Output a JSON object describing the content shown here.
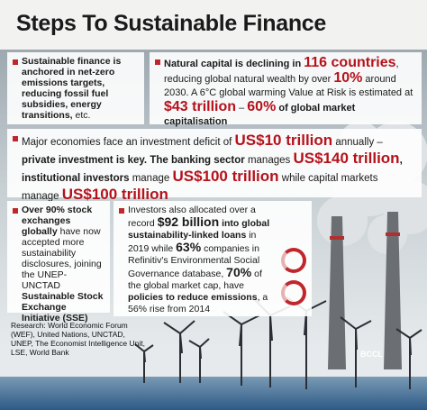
{
  "title": "Steps To Sustainable Finance",
  "boxes": [
    {
      "segments": [
        {
          "text": "Sustainable finance is anchored in ",
          "style": "bold"
        },
        {
          "text": "net-zero emissions targets, reducing fossil fuel subsidies, energy transitions,",
          "style": "bold"
        },
        {
          "text": " etc.",
          "style": "plain"
        }
      ]
    },
    {
      "segments": [
        {
          "text": "Natural capital is declining in ",
          "style": "bold"
        },
        {
          "text": "116 countries",
          "style": "red"
        },
        {
          "text": ", reducing global natural wealth by over ",
          "style": "plain"
        },
        {
          "text": "10%",
          "style": "red"
        },
        {
          "text": " around 2030. A 6°C global warming Value at Risk is estimated at ",
          "style": "plain"
        },
        {
          "text": "$43 trillion",
          "style": "red"
        },
        {
          "text": " – ",
          "style": "plain"
        },
        {
          "text": "60%",
          "style": "red"
        },
        {
          "text": " of global market capitalisation",
          "style": "bold"
        }
      ]
    },
    {
      "segments": [
        {
          "text": "Major economies face an investment deficit of ",
          "style": "plain"
        },
        {
          "text": "US$10 trillion",
          "style": "red"
        },
        {
          "text": " annually – ",
          "style": "plain"
        },
        {
          "text": "private investment is key. The banking sector",
          "style": "bold"
        },
        {
          "text": " manages ",
          "style": "plain"
        },
        {
          "text": "US$140 trillion",
          "style": "red"
        },
        {
          "text": ", institutional investors",
          "style": "bold"
        },
        {
          "text": " manage ",
          "style": "plain"
        },
        {
          "text": "US$100 trillion",
          "style": "red"
        },
        {
          "text": " while capital markets manage ",
          "style": "plain"
        },
        {
          "text": "US$100 trillion",
          "style": "red"
        }
      ]
    },
    {
      "segments": [
        {
          "text": "Over 90% stock exchanges globally",
          "style": "bold"
        },
        {
          "text": " have now accepted more sustainability disclosures, joining the UNEP-UNCTAD ",
          "style": "plain"
        },
        {
          "text": "Sustainable Stock Exchange Initiative (SSE)",
          "style": "bold"
        }
      ]
    },
    {
      "segments": [
        {
          "text": "Investors also allocated over a record ",
          "style": "plain"
        },
        {
          "text": "$92 billion",
          "style": "big"
        },
        {
          "text": " into global sustainability-linked loans",
          "style": "bold"
        },
        {
          "text": " in 2019 while ",
          "style": "plain"
        },
        {
          "text": "63%",
          "style": "big"
        },
        {
          "text": " companies in Refinitiv's Environmental Social Governance database, ",
          "style": "plain"
        },
        {
          "text": "70%",
          "style": "big"
        },
        {
          "text": " of the global market cap, have ",
          "style": "plain"
        },
        {
          "text": "policies to reduce emissions",
          "style": "bold"
        },
        {
          "text": ", a 56% rise from 2014",
          "style": "plain"
        }
      ]
    }
  ],
  "source": "Research: World Economic Forum (WEF), United Nations, UNCTAD, UNEP, The Economist Intelligence Unit, LSE, World Bank",
  "credit": "BCCL"
}
